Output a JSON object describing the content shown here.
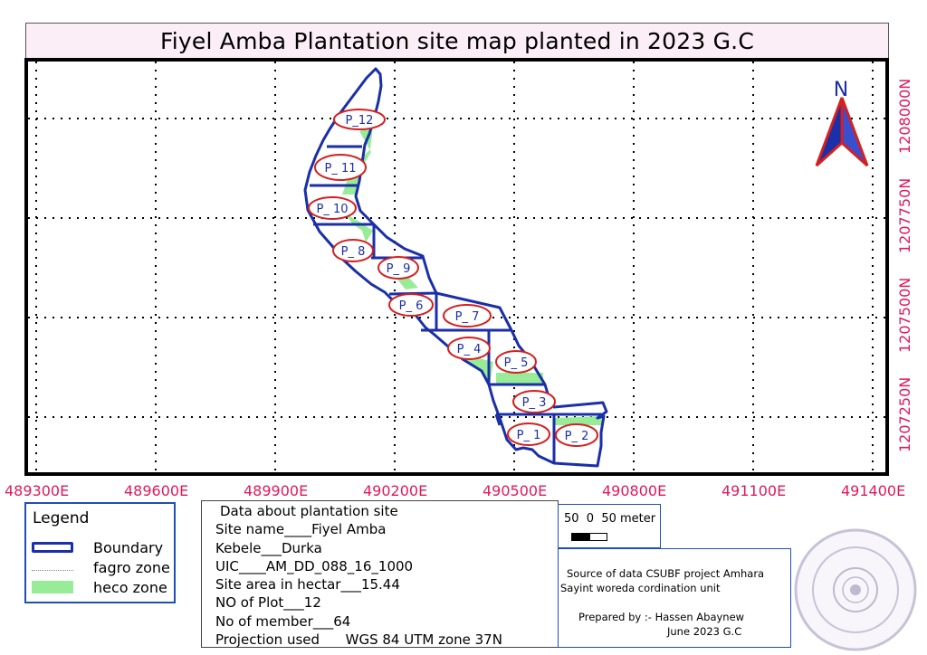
{
  "title": "Fiyel Amba Plantation site map planted in 2023 G.C",
  "north_arrow": {
    "label": "N",
    "icon": "north-arrow-icon"
  },
  "easting_labels": [
    "489300E",
    "489600E",
    "489900E",
    "490200E",
    "490500E",
    "490800E",
    "491100E",
    "491400E"
  ],
  "northing_labels": [
    "1208000N",
    "1207750N",
    "1207500N",
    "1207250N"
  ],
  "plots": [
    "P_12",
    "P_ 11",
    "P_ 10",
    "P_ 8",
    "P_ 9",
    "P_ 6",
    "P_ 7",
    "P_ 4",
    "P_ 5",
    "P_ 3",
    "P_ 1",
    "P_ 2"
  ],
  "legend": {
    "title": "Legend",
    "items": [
      {
        "label": "Boundary",
        "color": "#1a2fa8"
      },
      {
        "label": "fagro zone",
        "color": "#888888"
      },
      {
        "label": "heco zone",
        "color": "#98ec98"
      }
    ]
  },
  "info": {
    "heading": "Data about plantation site",
    "site_name": "Site name____Fiyel Amba",
    "kebele": "Kebele___Durka",
    "uic": "UIC____AM_DD_088_16_1000",
    "area": "Site area in hectar___15.44",
    "plots": "NO of Plot___12",
    "members": "No of member___64",
    "projection": "Projection used      WGS 84 UTM zone 37N"
  },
  "scale": {
    "text": "50  0  50 meter"
  },
  "source": {
    "line1": "Source of data CSUBF project Amhara",
    "line2": "Sayint woreda cordination unit",
    "line3": "Prepared by :- Hassen Abaynew",
    "line4": "June 2023 G.C"
  },
  "colors": {
    "boundary": "#1a2fa8",
    "heco": "#98ec98",
    "plot_label_ring": "#d42020",
    "coordinates": "#e0195c",
    "title_bg": "#fbeef6"
  }
}
